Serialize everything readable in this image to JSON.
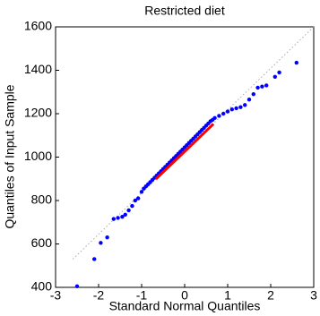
{
  "chart_data": {
    "type": "scatter",
    "title": "Restricted diet",
    "xlabel": "Standard Normal Quantiles",
    "ylabel": "Quantiles of Input Sample",
    "xlim": [
      -3,
      3
    ],
    "ylim": [
      400,
      1600
    ],
    "xticks": [
      -3,
      -2,
      -1,
      0,
      1,
      2,
      3
    ],
    "yticks": [
      400,
      600,
      800,
      1000,
      1200,
      1400,
      1600
    ],
    "series": [
      {
        "color": "#0000ff",
        "x": [
          -2.5,
          -2.1,
          -1.95,
          -1.8,
          -1.65,
          -1.55,
          -1.45,
          -1.38,
          -1.3,
          -1.22,
          -1.15,
          -1.08,
          -1.0,
          -0.95,
          -0.9,
          -0.85,
          -0.8,
          -0.75,
          -0.7,
          -0.65,
          -0.6,
          -0.55,
          -0.5,
          -0.45,
          -0.4,
          -0.35,
          -0.3,
          -0.25,
          -0.2,
          -0.15,
          -0.1,
          -0.05,
          0,
          0.05,
          0.1,
          0.15,
          0.2,
          0.25,
          0.3,
          0.35,
          0.4,
          0.45,
          0.5,
          0.55,
          0.6,
          0.65,
          0.7,
          0.8,
          0.9,
          1.0,
          1.1,
          1.2,
          1.3,
          1.4,
          1.5,
          1.6,
          1.7,
          1.8,
          1.9,
          2.1,
          2.2,
          2.6
        ],
        "values": [
          405,
          530,
          605,
          630,
          715,
          720,
          725,
          735,
          755,
          775,
          800,
          810,
          840,
          855,
          865,
          875,
          885,
          895,
          905,
          915,
          925,
          935,
          945,
          955,
          965,
          975,
          985,
          995,
          1005,
          1015,
          1025,
          1035,
          1045,
          1055,
          1065,
          1075,
          1085,
          1095,
          1105,
          1115,
          1125,
          1135,
          1145,
          1155,
          1165,
          1172,
          1180,
          1190,
          1200,
          1210,
          1220,
          1225,
          1230,
          1240,
          1265,
          1290,
          1320,
          1325,
          1330,
          1370,
          1390,
          1435
        ]
      }
    ],
    "fit_line": {
      "color": "#ff0000",
      "x": [
        -0.67,
        0.67
      ],
      "values": [
        899,
        1153
      ]
    },
    "reference_line": {
      "color": "#aaaaaa",
      "x": [
        -2.6,
        3
      ],
      "values": [
        530,
        1600
      ]
    }
  }
}
